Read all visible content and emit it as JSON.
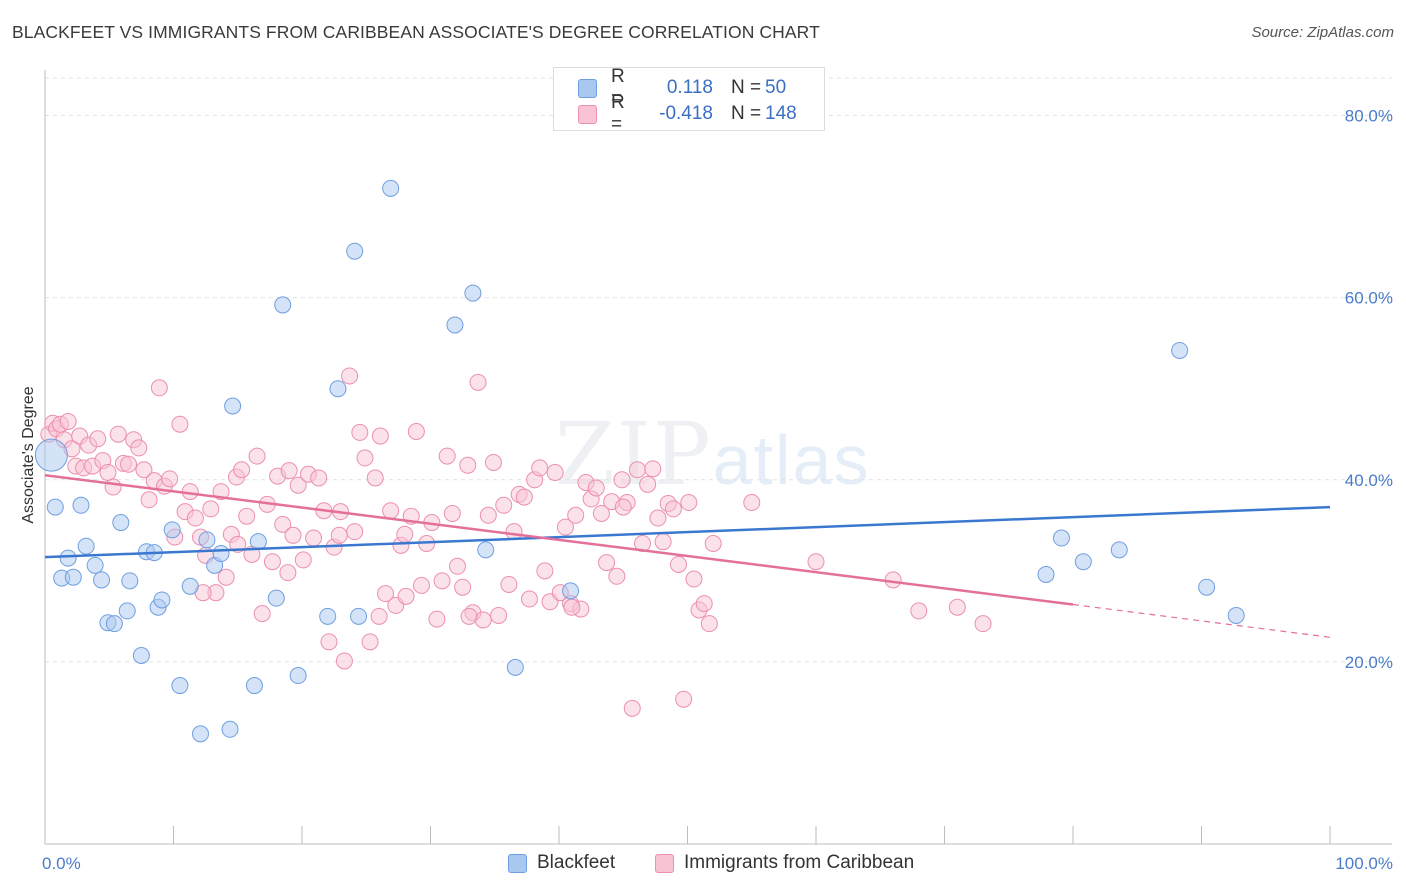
{
  "header": {
    "title": "BLACKFEET VS IMMIGRANTS FROM CARIBBEAN ASSOCIATE'S DEGREE CORRELATION CHART",
    "source": "Source: ZipAtlas.com"
  },
  "watermark": {
    "zip": "ZIP",
    "atlas": "atlas"
  },
  "legend_top": {
    "rows": [
      {
        "r_label": "R =",
        "r_value": "0.118",
        "n_label": "N =",
        "n_value": "50",
        "color": "#a9c8f0",
        "border": "#6f9fe0"
      },
      {
        "r_label": "R =",
        "r_value": "-0.418",
        "n_label": "N =",
        "n_value": "148",
        "color": "#f8c3d3",
        "border": "#ec8fb0"
      }
    ]
  },
  "legend_bottom": {
    "items": [
      {
        "label": "Blackfeet",
        "color": "#a9c8f0",
        "border": "#6f9fe0"
      },
      {
        "label": "Immigrants from Caribbean",
        "color": "#f8c3d3",
        "border": "#ec8fb0"
      }
    ]
  },
  "chart_data": {
    "type": "scatter",
    "title": "BLACKFEET VS IMMIGRANTS FROM CARIBBEAN ASSOCIATE'S DEGREE CORRELATION CHART",
    "xlabel": "",
    "ylabel": "Associate's Degree",
    "xlim": [
      0,
      100
    ],
    "ylim": [
      0,
      85
    ],
    "x_tick_labels": [
      "0.0%",
      "100.0%"
    ],
    "y_ticks": [
      20,
      40,
      60,
      80
    ],
    "y_tick_labels": [
      "20.0%",
      "40.0%",
      "60.0%",
      "80.0%"
    ],
    "grid": true,
    "legend": "bottom",
    "colors": {
      "blackfeet_point": "#a9c8f0",
      "blackfeet_edge": "#6f9fe0",
      "blackfeet_line": "#3a78d0",
      "caribbean_point": "#f8c3d3",
      "caribbean_edge": "#ec8fb0",
      "caribbean_line": "#e36f9a"
    },
    "series": [
      {
        "name": "Blackfeet",
        "trend": {
          "x": [
            0,
            100
          ],
          "y": [
            31.5,
            37.0
          ]
        },
        "points": [
          [
            0.5,
            42.7
          ],
          [
            0.8,
            37.0
          ],
          [
            1.3,
            29.2
          ],
          [
            1.8,
            31.4
          ],
          [
            2.2,
            29.3
          ],
          [
            2.8,
            37.2
          ],
          [
            3.2,
            32.7
          ],
          [
            3.9,
            30.6
          ],
          [
            4.4,
            29.0
          ],
          [
            4.9,
            24.3
          ],
          [
            5.4,
            24.2
          ],
          [
            5.9,
            35.3
          ],
          [
            6.4,
            25.6
          ],
          [
            6.6,
            28.9
          ],
          [
            7.5,
            20.7
          ],
          [
            7.9,
            32.1
          ],
          [
            8.5,
            32.0
          ],
          [
            8.8,
            26.0
          ],
          [
            9.1,
            26.8
          ],
          [
            9.9,
            34.5
          ],
          [
            10.5,
            17.4
          ],
          [
            11.3,
            28.3
          ],
          [
            12.1,
            12.1
          ],
          [
            12.6,
            33.4
          ],
          [
            13.2,
            30.6
          ],
          [
            13.7,
            31.9
          ],
          [
            14.4,
            12.6
          ],
          [
            14.6,
            48.1
          ],
          [
            16.3,
            17.4
          ],
          [
            16.6,
            33.2
          ],
          [
            18.0,
            27.0
          ],
          [
            18.5,
            59.2
          ],
          [
            19.7,
            18.5
          ],
          [
            22.0,
            25.0
          ],
          [
            22.8,
            50.0
          ],
          [
            24.1,
            65.1
          ],
          [
            24.4,
            25.0
          ],
          [
            26.9,
            72.0
          ],
          [
            31.9,
            57.0
          ],
          [
            33.3,
            60.5
          ],
          [
            34.3,
            32.3
          ],
          [
            36.6,
            19.4
          ],
          [
            40.9,
            27.8
          ],
          [
            77.9,
            29.6
          ],
          [
            79.1,
            33.6
          ],
          [
            80.8,
            31.0
          ],
          [
            83.6,
            32.3
          ],
          [
            88.3,
            54.2
          ],
          [
            90.4,
            28.2
          ],
          [
            92.7,
            25.1
          ]
        ]
      },
      {
        "name": "Immigrants from Caribbean",
        "trend": {
          "x": [
            0,
            80
          ],
          "y": [
            40.5,
            26.3
          ]
        },
        "trend_dashed": {
          "x": [
            80,
            100
          ],
          "y": [
            26.3,
            22.7
          ]
        },
        "points": [
          [
            0.3,
            45.0
          ],
          [
            0.6,
            46.2
          ],
          [
            0.9,
            45.6
          ],
          [
            1.2,
            46.1
          ],
          [
            1.5,
            44.4
          ],
          [
            1.8,
            46.4
          ],
          [
            2.1,
            43.4
          ],
          [
            2.4,
            41.5
          ],
          [
            2.7,
            44.8
          ],
          [
            3.0,
            41.3
          ],
          [
            3.4,
            43.8
          ],
          [
            3.7,
            41.5
          ],
          [
            4.1,
            44.5
          ],
          [
            4.5,
            42.1
          ],
          [
            4.9,
            40.8
          ],
          [
            5.3,
            39.2
          ],
          [
            5.7,
            45.0
          ],
          [
            6.1,
            41.8
          ],
          [
            6.5,
            41.7
          ],
          [
            6.9,
            44.4
          ],
          [
            7.3,
            43.5
          ],
          [
            7.7,
            41.1
          ],
          [
            8.1,
            37.8
          ],
          [
            8.5,
            39.9
          ],
          [
            8.9,
            50.1
          ],
          [
            9.3,
            39.3
          ],
          [
            9.7,
            40.1
          ],
          [
            10.1,
            33.7
          ],
          [
            10.5,
            46.1
          ],
          [
            10.9,
            36.5
          ],
          [
            11.3,
            38.7
          ],
          [
            11.7,
            35.8
          ],
          [
            12.1,
            33.7
          ],
          [
            12.5,
            31.7
          ],
          [
            12.9,
            36.8
          ],
          [
            13.3,
            27.6
          ],
          [
            13.7,
            38.7
          ],
          [
            14.1,
            29.3
          ],
          [
            14.5,
            34.0
          ],
          [
            14.9,
            40.3
          ],
          [
            15.3,
            41.1
          ],
          [
            15.7,
            36.0
          ],
          [
            16.1,
            31.8
          ],
          [
            16.5,
            42.6
          ],
          [
            16.9,
            25.3
          ],
          [
            17.3,
            37.3
          ],
          [
            17.7,
            31.0
          ],
          [
            18.1,
            40.4
          ],
          [
            18.5,
            35.1
          ],
          [
            18.9,
            29.8
          ],
          [
            19.3,
            33.9
          ],
          [
            19.7,
            39.4
          ],
          [
            20.1,
            31.2
          ],
          [
            20.5,
            40.6
          ],
          [
            20.9,
            33.6
          ],
          [
            21.3,
            40.2
          ],
          [
            21.7,
            36.6
          ],
          [
            22.1,
            22.2
          ],
          [
            22.5,
            32.6
          ],
          [
            22.9,
            33.9
          ],
          [
            23.3,
            20.1
          ],
          [
            23.7,
            51.4
          ],
          [
            24.1,
            34.3
          ],
          [
            24.5,
            45.2
          ],
          [
            24.9,
            42.4
          ],
          [
            25.3,
            22.2
          ],
          [
            25.7,
            40.2
          ],
          [
            26.1,
            44.8
          ],
          [
            26.5,
            27.5
          ],
          [
            26.9,
            36.6
          ],
          [
            27.3,
            26.2
          ],
          [
            27.7,
            32.8
          ],
          [
            28.1,
            27.2
          ],
          [
            28.5,
            36.0
          ],
          [
            28.9,
            45.3
          ],
          [
            29.3,
            28.4
          ],
          [
            29.7,
            33.0
          ],
          [
            30.1,
            35.3
          ],
          [
            30.5,
            24.7
          ],
          [
            30.9,
            28.9
          ],
          [
            31.3,
            42.6
          ],
          [
            31.7,
            36.3
          ],
          [
            32.1,
            30.5
          ],
          [
            32.5,
            28.2
          ],
          [
            32.9,
            41.6
          ],
          [
            33.3,
            25.4
          ],
          [
            33.7,
            50.7
          ],
          [
            34.1,
            24.6
          ],
          [
            34.5,
            36.1
          ],
          [
            34.9,
            41.9
          ],
          [
            35.3,
            25.1
          ],
          [
            35.7,
            37.2
          ],
          [
            36.1,
            28.5
          ],
          [
            36.5,
            34.3
          ],
          [
            36.9,
            38.4
          ],
          [
            37.3,
            38.1
          ],
          [
            37.7,
            26.9
          ],
          [
            38.1,
            40.0
          ],
          [
            38.5,
            41.3
          ],
          [
            38.9,
            30.0
          ],
          [
            39.3,
            26.6
          ],
          [
            39.7,
            40.8
          ],
          [
            40.1,
            27.6
          ],
          [
            40.5,
            34.8
          ],
          [
            40.9,
            26.4
          ],
          [
            41.3,
            36.1
          ],
          [
            41.7,
            25.8
          ],
          [
            42.1,
            39.7
          ],
          [
            42.5,
            37.9
          ],
          [
            42.9,
            39.1
          ],
          [
            43.3,
            36.3
          ],
          [
            43.7,
            30.9
          ],
          [
            44.1,
            37.6
          ],
          [
            44.5,
            29.4
          ],
          [
            44.9,
            40.0
          ],
          [
            45.3,
            37.5
          ],
          [
            45.7,
            14.9
          ],
          [
            46.1,
            41.1
          ],
          [
            46.5,
            33.0
          ],
          [
            46.9,
            39.5
          ],
          [
            47.3,
            41.2
          ],
          [
            47.7,
            35.8
          ],
          [
            48.1,
            33.2
          ],
          [
            48.5,
            37.4
          ],
          [
            48.9,
            36.8
          ],
          [
            49.3,
            30.7
          ],
          [
            49.7,
            15.9
          ],
          [
            50.1,
            37.5
          ],
          [
            50.5,
            29.1
          ],
          [
            50.9,
            25.7
          ],
          [
            51.3,
            26.4
          ],
          [
            51.7,
            24.2
          ],
          [
            26.0,
            25.0
          ],
          [
            28.0,
            34.0
          ],
          [
            19.0,
            41.0
          ],
          [
            12.3,
            27.6
          ],
          [
            15.0,
            32.9
          ],
          [
            23.0,
            36.5
          ],
          [
            33.0,
            25.0
          ],
          [
            45.0,
            37.0
          ],
          [
            55.0,
            37.5
          ],
          [
            60.0,
            31.0
          ],
          [
            66.0,
            29.0
          ],
          [
            68.0,
            25.6
          ],
          [
            71.0,
            26.0
          ],
          [
            73.0,
            24.2
          ],
          [
            52.0,
            33.0
          ],
          [
            41.0,
            26.0
          ]
        ]
      }
    ]
  }
}
